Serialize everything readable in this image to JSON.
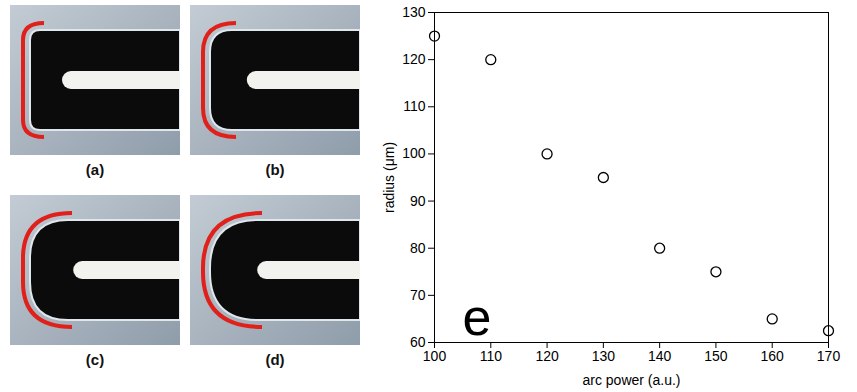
{
  "panels": [
    {
      "label": "(a)"
    },
    {
      "label": "(b)"
    },
    {
      "label": "(c)"
    },
    {
      "label": "(d)"
    }
  ],
  "chart_data": {
    "type": "scatter",
    "x": [
      100,
      110,
      120,
      130,
      140,
      150,
      160,
      170
    ],
    "values": [
      125,
      120,
      100,
      95,
      80,
      75,
      65,
      62.5
    ],
    "xlabel": "arc power (a.u.)",
    "ylabel": "radius (μm)",
    "annotation": "e",
    "xlim": [
      100,
      170
    ],
    "xticks": [
      100,
      110,
      120,
      130,
      140,
      150,
      160,
      170
    ],
    "ylim": [
      60,
      130
    ],
    "yticks": [
      60,
      70,
      80,
      90,
      100,
      110,
      120,
      130
    ],
    "color": "#000000",
    "marker": "circle",
    "grid": false
  }
}
